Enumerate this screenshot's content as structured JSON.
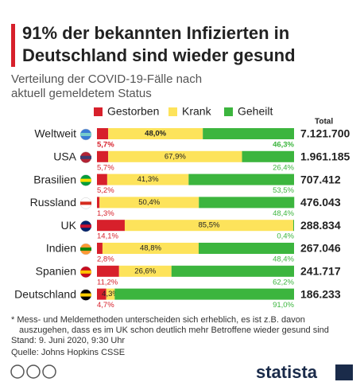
{
  "chart_data": {
    "type": "stacked_bar_horizontal",
    "title": [
      "91% der bekannten Infizierten in",
      "Deutschland sind wieder gesund"
    ],
    "subtitle": [
      "Verteilung der COVID-19-Fälle nach",
      "aktuell gemeldetem Status"
    ],
    "categories": [
      "Weltweit",
      "USA",
      "Brasilien",
      "Russland",
      "UK",
      "Indien",
      "Spanien",
      "Deutschland"
    ],
    "series": [
      {
        "name": "Gestorben",
        "color": "#d7202b",
        "values": [
          5.7,
          5.7,
          5.2,
          1.3,
          14.1,
          2.8,
          11.2,
          4.7
        ],
        "value_labels": [
          "5,7%",
          "5,7%",
          "5,2%",
          "1,3%",
          "14,1%",
          "2,8%",
          "11,2%",
          "4,7%"
        ]
      },
      {
        "name": "Krank",
        "color": "#fde35b",
        "values": [
          48.0,
          67.9,
          41.3,
          50.4,
          85.5,
          48.8,
          26.6,
          4.3
        ],
        "value_labels": [
          "48,0%",
          "67,9%",
          "41,3%",
          "50,4%",
          "85,5%",
          "48,8%",
          "26,6%",
          "4,3%"
        ]
      },
      {
        "name": "Geheilt",
        "color": "#3cb53e",
        "values": [
          46.3,
          26.4,
          53.5,
          48.4,
          0.4,
          48.4,
          62.2,
          91.0
        ],
        "value_labels": [
          "46,3%",
          "26,4%",
          "53,5%",
          "48,4%",
          "0,4%",
          "48,4%",
          "62,2%",
          "91,0%"
        ]
      }
    ],
    "totals": {
      "name": "Total",
      "values": [
        7121700,
        1961185,
        707412,
        476043,
        288834,
        267046,
        241717,
        186233
      ],
      "value_labels": [
        "7.121.700",
        "1.961.185",
        "707.412",
        "476.043",
        "288.834",
        "267.046",
        "241.717",
        "186.233"
      ]
    },
    "xlim": [
      0,
      100
    ],
    "notes": [
      "* Mess- und Meldemethoden unterscheiden sich erheblich, es ist z.B. davon",
      "auszugehen, dass es im UK schon deutlich mehr Betroffene wieder gesund sind",
      "Stand: 9. Juni 2020, 9:30 Uhr",
      "Quelle: Johns Hopkins CSSE"
    ],
    "brand": "statista"
  }
}
